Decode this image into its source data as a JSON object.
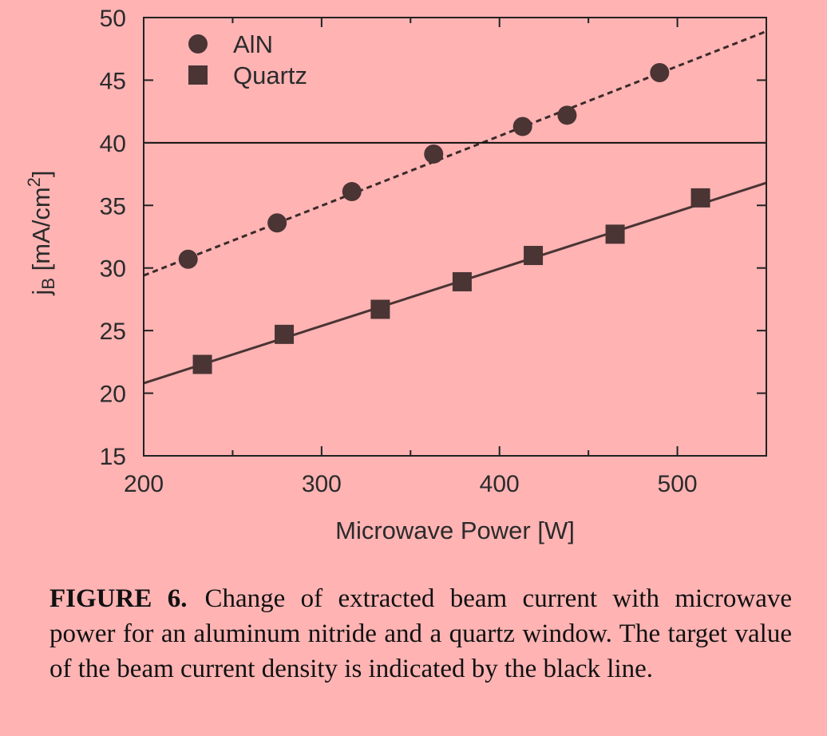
{
  "chart_data": {
    "type": "scatter",
    "xlabel": "Microwave Power [W]",
    "ylabel_main": "j",
    "ylabel_sub": "B",
    "ylabel_rest": " [mA/cm",
    "ylabel_sup": "2",
    "ylabel_end": "]",
    "xlim": [
      200,
      550
    ],
    "ylim": [
      15,
      50
    ],
    "xticks": [
      200,
      300,
      400,
      500
    ],
    "yticks": [
      15,
      20,
      25,
      30,
      35,
      40,
      45,
      50
    ],
    "grid": false,
    "legend_position": "top-left",
    "reference_line": {
      "y": 40,
      "color": "#111111"
    },
    "series": [
      {
        "name": "AlN",
        "marker": "circle",
        "color": "#4a3434",
        "fit_line": "dashed",
        "fit": {
          "x": [
            200,
            550
          ],
          "y": [
            29.4,
            48.9
          ]
        },
        "points": [
          {
            "x": 225,
            "y": 30.7
          },
          {
            "x": 275,
            "y": 33.6
          },
          {
            "x": 317,
            "y": 36.1
          },
          {
            "x": 363,
            "y": 39.1
          },
          {
            "x": 413,
            "y": 41.3
          },
          {
            "x": 438,
            "y": 42.2
          },
          {
            "x": 490,
            "y": 45.6
          }
        ]
      },
      {
        "name": "Quartz",
        "marker": "square",
        "color": "#4a3434",
        "fit_line": "solid",
        "fit": {
          "x": [
            200,
            550
          ],
          "y": [
            20.8,
            36.8
          ]
        },
        "points": [
          {
            "x": 233,
            "y": 22.3
          },
          {
            "x": 279,
            "y": 24.7
          },
          {
            "x": 333,
            "y": 26.7
          },
          {
            "x": 379,
            "y": 28.9
          },
          {
            "x": 419,
            "y": 31.0
          },
          {
            "x": 465,
            "y": 32.7
          },
          {
            "x": 513,
            "y": 35.6
          }
        ]
      }
    ]
  },
  "caption": {
    "label": "FIGURE 6.",
    "text": "Change of extracted beam current with microwave power for an aluminum nitride and a quartz window. The target value of the beam current density is indicated by the black line."
  }
}
